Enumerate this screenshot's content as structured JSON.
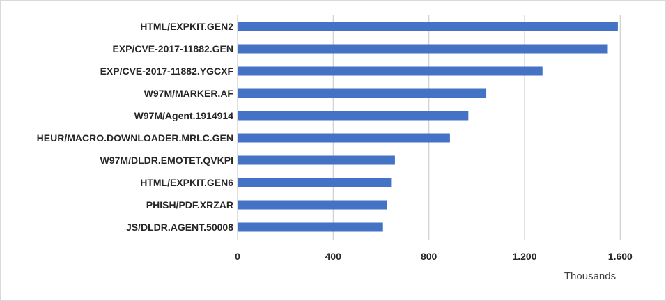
{
  "chart_data": {
    "type": "bar",
    "orientation": "horizontal",
    "categories": [
      "HTML/EXPKIT.GEN2",
      "EXP/CVE-2017-11882.GEN",
      "EXP/CVE-2017-11882.YGCXF",
      "W97M/MARKER.AF",
      "W97M/Agent.1914914",
      "HEUR/MACRO.DOWNLOADER.MRLC.GEN",
      "W97M/DLDR.EMOTET.QVKPI",
      "HTML/EXPKIT.GEN6",
      "PHISH/PDF.XRZAR",
      "JS/DLDR.AGENT.50008"
    ],
    "values": [
      1590,
      1548,
      1275,
      1040,
      965,
      888,
      658,
      642,
      625,
      608
    ],
    "xlim": [
      0,
      1800
    ],
    "xticks": [
      0,
      400,
      800,
      1200,
      1600
    ],
    "xtick_labels": [
      "0",
      "400",
      "800",
      "1.200",
      "1.600"
    ],
    "unit_label": "Thousands",
    "bar_color": "#4472c4",
    "grid": true,
    "legend": "none"
  }
}
